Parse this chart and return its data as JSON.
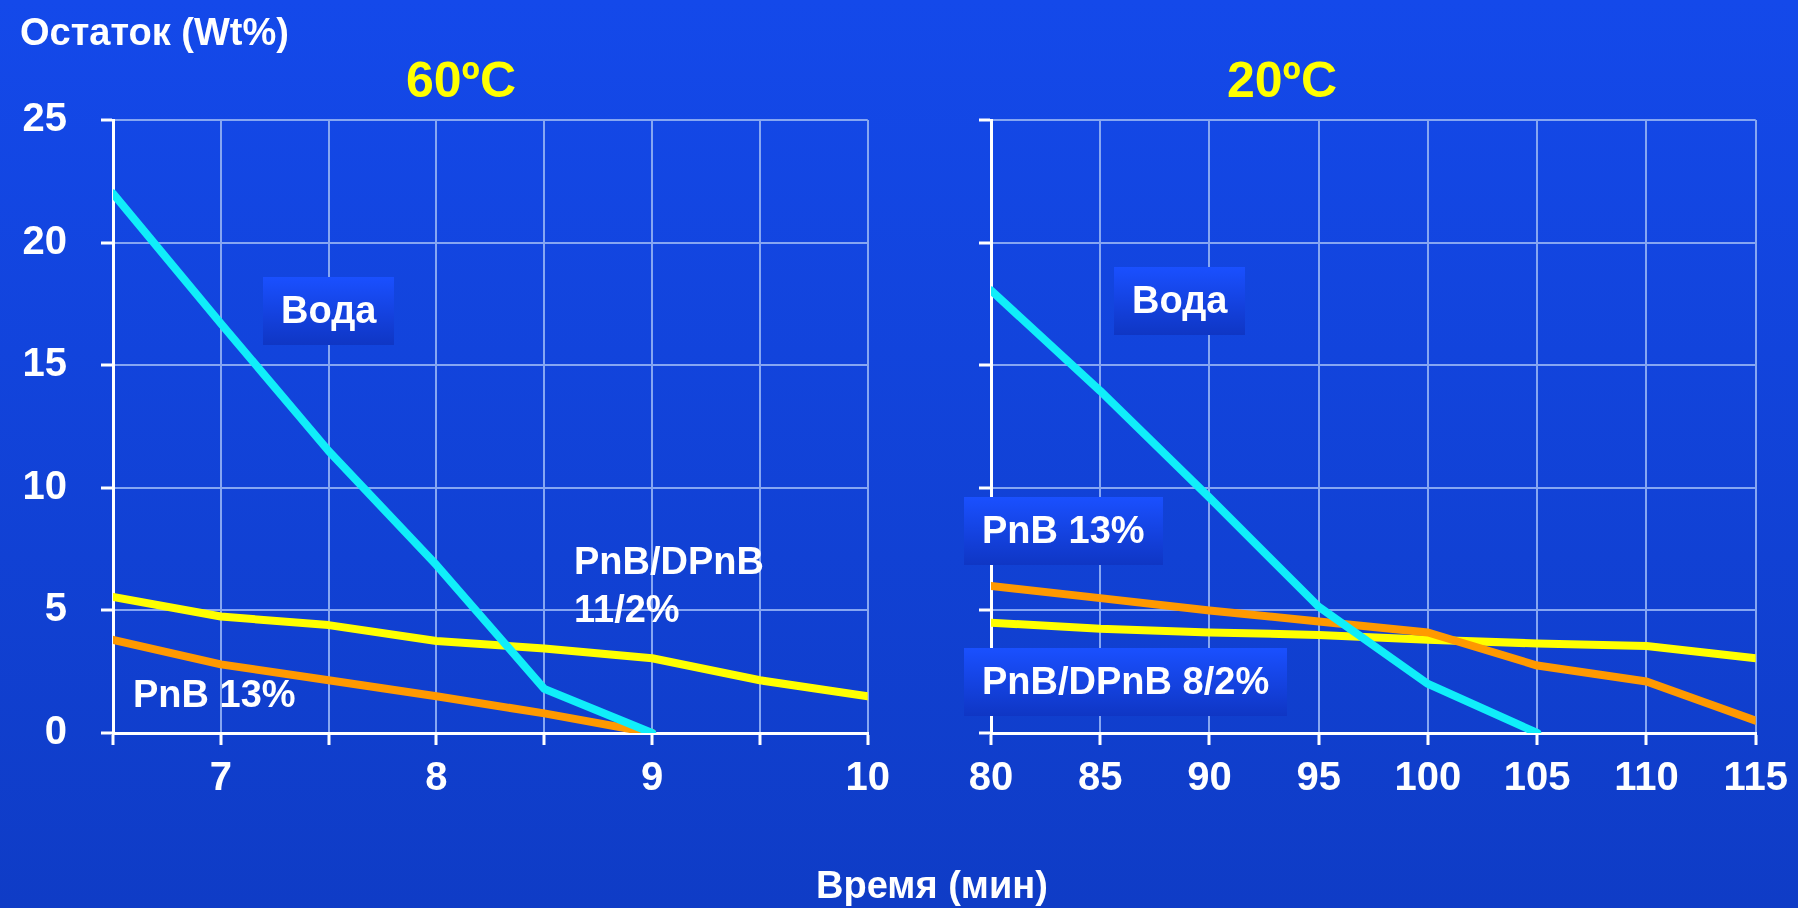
{
  "chart_data": [
    {
      "type": "line",
      "title": "60ºC",
      "ylabel": "Остаток (Wt%)",
      "xlabel": "Время (мин)",
      "x": [
        6.5,
        7,
        7.5,
        8,
        8.5,
        9,
        9.5,
        10
      ],
      "xlim": [
        6.5,
        10
      ],
      "xticks": [
        {
          "value": 6.5,
          "label": null
        },
        7,
        {
          "value": 7.5,
          "label": null
        },
        8,
        {
          "value": 8.5,
          "label": null
        },
        9,
        {
          "value": 9.5,
          "label": null
        },
        10
      ],
      "ylim": [
        0,
        25
      ],
      "yticks": [
        0,
        5,
        10,
        15,
        20,
        25
      ],
      "grid": true,
      "marker": "none",
      "line_style": "solid",
      "series": [
        {
          "name": "Вода",
          "color": "#10eefa",
          "values": [
            22.0,
            16.7,
            11.5,
            6.85,
            1.8,
            0,
            null,
            null
          ]
        },
        {
          "name": "PnB 13%",
          "color": "#ff9900",
          "values": [
            3.8,
            2.8,
            2.15,
            1.5,
            0.8,
            0,
            null,
            null
          ]
        },
        {
          "name": "PnB/DPnB 11/2%",
          "color": "#ffff00",
          "values": [
            5.55,
            4.75,
            4.4,
            3.75,
            3.45,
            3.05,
            2.15,
            1.5
          ]
        }
      ]
    },
    {
      "type": "line",
      "title": "20ºC",
      "x": [
        80,
        85,
        90,
        95,
        100,
        105,
        110,
        115
      ],
      "xlim": [
        80,
        115
      ],
      "xticks": [
        80,
        85,
        90,
        95,
        100,
        105,
        110,
        115
      ],
      "ylim": [
        0,
        25
      ],
      "yticks": [
        0,
        5,
        10,
        15,
        20,
        25
      ],
      "tick_labels": "x",
      "grid": true,
      "marker": "none",
      "line_style": "solid",
      "series": [
        {
          "name": "Вода",
          "color": "#10eefa",
          "values": [
            18.05,
            13.95,
            9.6,
            5.15,
            2.0,
            0,
            null,
            null
          ]
        },
        {
          "name": "PnB 13%",
          "color": "#ff9900",
          "values": [
            6.0,
            5.5,
            5.0,
            4.55,
            4.1,
            2.75,
            2.1,
            0.5
          ]
        },
        {
          "name": "PnB/DPnB 8/2%",
          "color": "#ffff00",
          "values": [
            4.5,
            4.25,
            4.1,
            4.0,
            3.8,
            3.65,
            3.55,
            3.05
          ]
        }
      ]
    }
  ]
}
